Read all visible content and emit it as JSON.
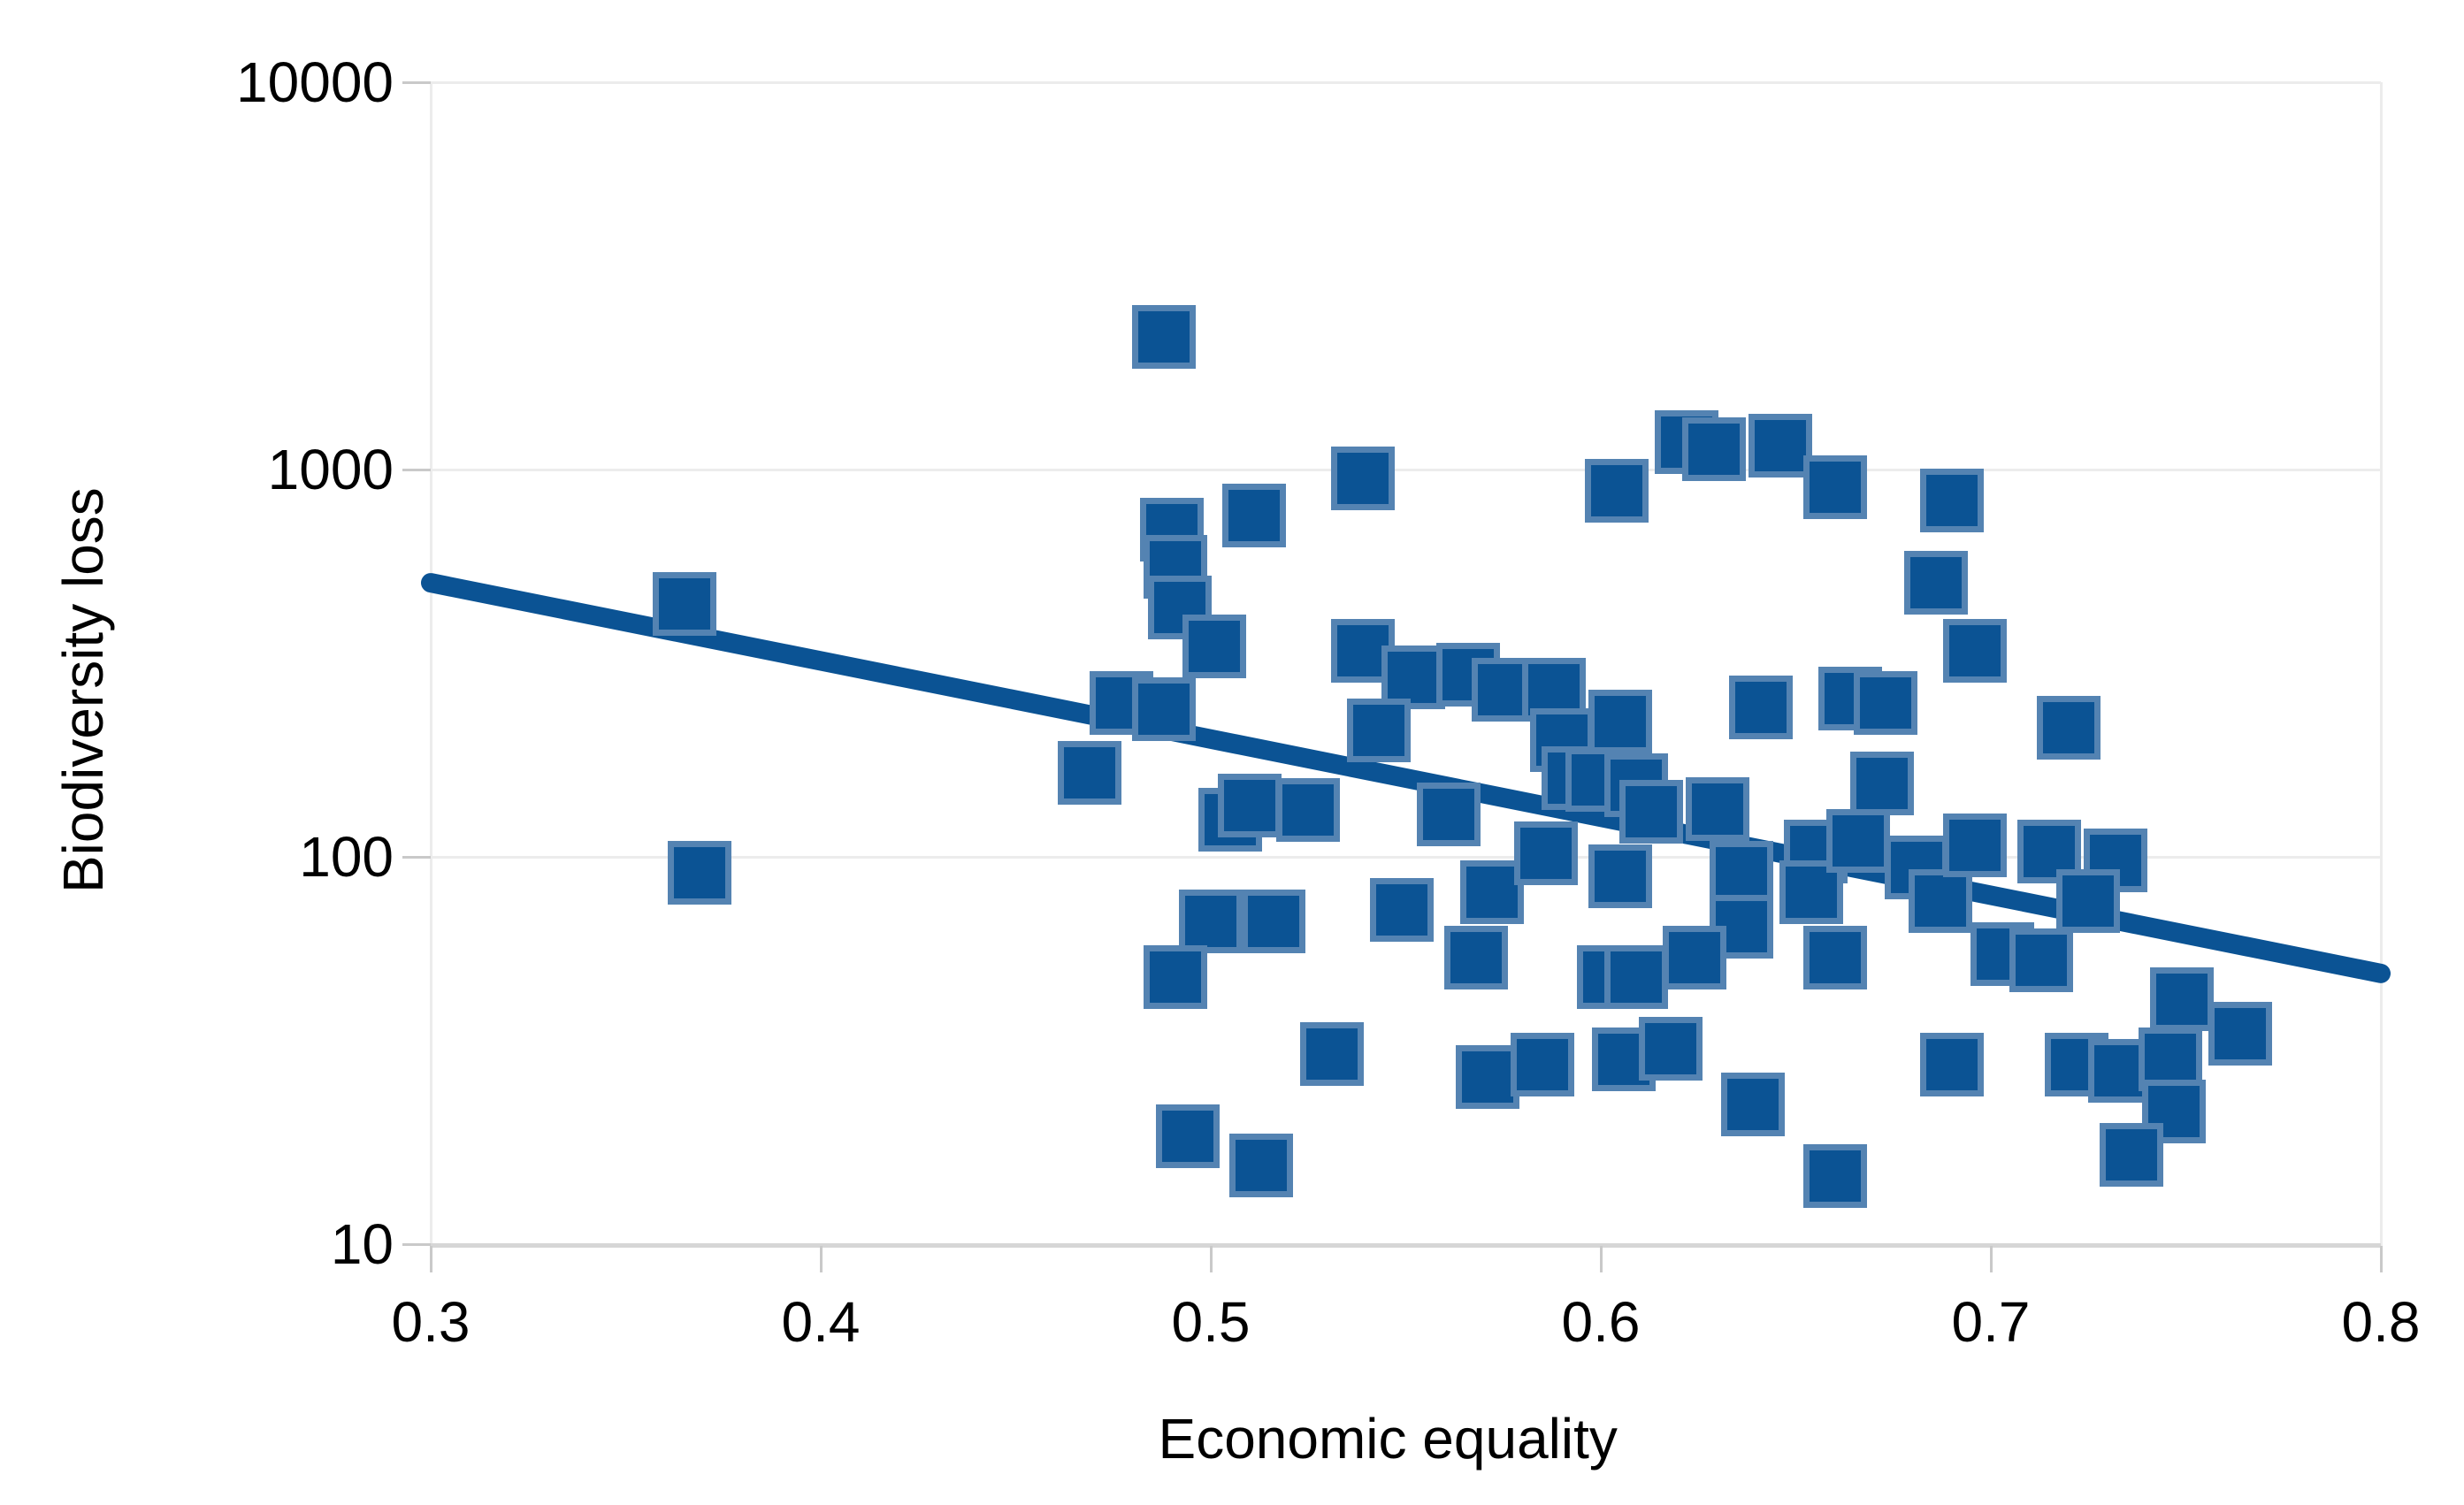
{
  "chart_data": {
    "type": "scatter",
    "title": "",
    "xlabel": "Economic equality",
    "ylabel": "Biodiversity loss",
    "x_axis": {
      "ticks": [
        0.3,
        0.4,
        0.5,
        0.6,
        0.7,
        0.8
      ],
      "scale": "linear",
      "xlim": [
        0.3,
        0.8
      ]
    },
    "y_axis": {
      "ticks": [
        10,
        100,
        1000,
        10000
      ],
      "scale": "log",
      "ylim": [
        10,
        10000
      ]
    },
    "grid": "horizontal-only",
    "legend": "none",
    "marker": "square",
    "colors": {
      "marker": "#0b5394",
      "marker_halo": "rgba(134,163,199,0.6)",
      "trend": "#0b5394",
      "grid": "#ececec",
      "axis": "#d6d6d6",
      "text": "#000000"
    },
    "trendline": {
      "x1": 0.3,
      "y1": 510,
      "x2": 0.8,
      "y2": 50
    },
    "points": [
      [
        0.365,
        450
      ],
      [
        0.369,
        91
      ],
      [
        0.469,
        165
      ],
      [
        0.477,
        250
      ],
      [
        0.488,
        240
      ],
      [
        0.488,
        2200
      ],
      [
        0.49,
        700
      ],
      [
        0.491,
        560
      ],
      [
        0.492,
        440
      ],
      [
        0.501,
        350
      ],
      [
        0.511,
        760
      ],
      [
        0.505,
        125
      ],
      [
        0.51,
        136
      ],
      [
        0.525,
        132
      ],
      [
        0.5,
        68
      ],
      [
        0.516,
        68
      ],
      [
        0.491,
        49
      ],
      [
        0.494,
        19
      ],
      [
        0.513,
        16
      ],
      [
        0.539,
        950
      ],
      [
        0.539,
        340
      ],
      [
        0.552,
        290
      ],
      [
        0.566,
        295
      ],
      [
        0.575,
        270
      ],
      [
        0.543,
        212
      ],
      [
        0.561,
        129
      ],
      [
        0.549,
        73
      ],
      [
        0.572,
        81
      ],
      [
        0.568,
        55
      ],
      [
        0.571,
        27
      ],
      [
        0.531,
        31
      ],
      [
        0.588,
        270
      ],
      [
        0.59,
        200
      ],
      [
        0.593,
        160
      ],
      [
        0.599,
        158
      ],
      [
        0.605,
        223
      ],
      [
        0.609,
        153
      ],
      [
        0.613,
        131
      ],
      [
        0.586,
        102
      ],
      [
        0.605,
        89
      ],
      [
        0.604,
        880
      ],
      [
        0.622,
        1180
      ],
      [
        0.629,
        1130
      ],
      [
        0.646,
        1150
      ],
      [
        0.66,
        900
      ],
      [
        0.63,
        133
      ],
      [
        0.636,
        91
      ],
      [
        0.636,
        66
      ],
      [
        0.641,
        243
      ],
      [
        0.602,
        49
      ],
      [
        0.609,
        49
      ],
      [
        0.624,
        55
      ],
      [
        0.585,
        29
      ],
      [
        0.606,
        30
      ],
      [
        0.618,
        32
      ],
      [
        0.639,
        23
      ],
      [
        0.66,
        15
      ],
      [
        0.655,
        103
      ],
      [
        0.654,
        81
      ],
      [
        0.666,
        110
      ],
      [
        0.672,
        155
      ],
      [
        0.664,
        256
      ],
      [
        0.673,
        250
      ],
      [
        0.681,
        94
      ],
      [
        0.687,
        77
      ],
      [
        0.66,
        55
      ],
      [
        0.686,
        510
      ],
      [
        0.69,
        830
      ],
      [
        0.696,
        340
      ],
      [
        0.696,
        107
      ],
      [
        0.69,
        29
      ],
      [
        0.703,
        56
      ],
      [
        0.713,
        54
      ],
      [
        0.715,
        103
      ],
      [
        0.72,
        216
      ],
      [
        0.732,
        98
      ],
      [
        0.725,
        77
      ],
      [
        0.722,
        29
      ],
      [
        0.733,
        28
      ],
      [
        0.746,
        30
      ],
      [
        0.747,
        22
      ],
      [
        0.736,
        17
      ],
      [
        0.749,
        43
      ],
      [
        0.764,
        35
      ]
    ]
  }
}
